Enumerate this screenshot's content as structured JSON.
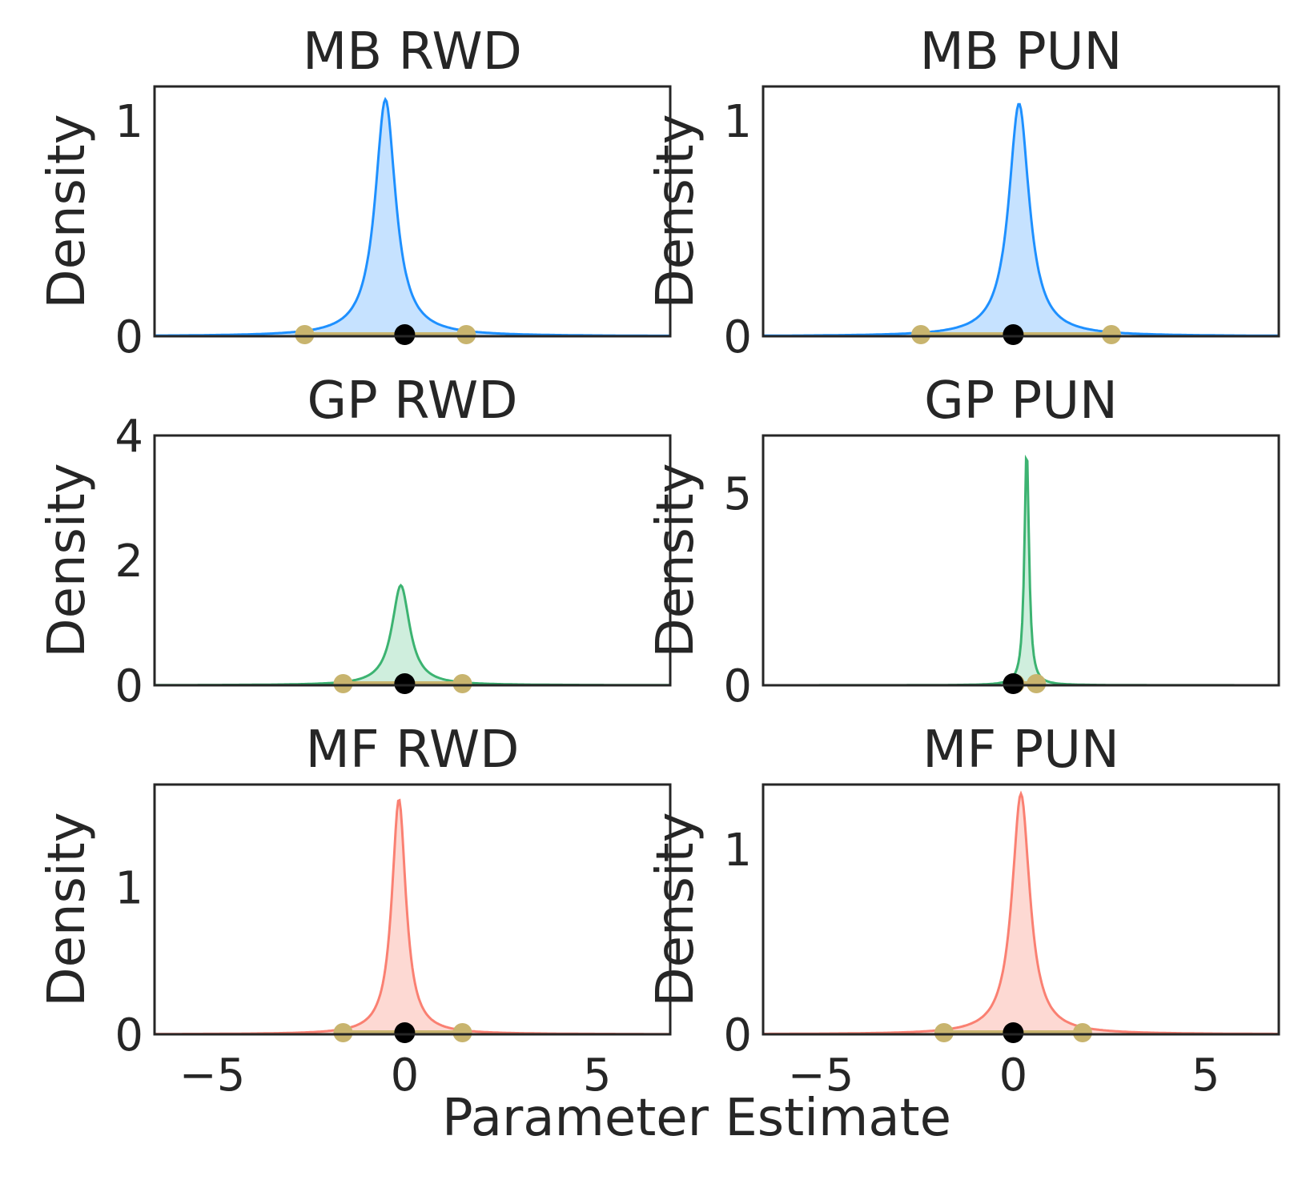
{
  "figure": {
    "xlabel": "Parameter Estimate"
  },
  "chart_data": [
    {
      "type": "area",
      "title": "MB RWD",
      "ylabel": "Density",
      "color": "#1e90ff",
      "fill": "#c6e2ff",
      "xlim": [
        -6.5,
        6.9
      ],
      "ylim": [
        0,
        1.16
      ],
      "xticks": [
        "−5",
        "0",
        "5"
      ],
      "yticks": [
        {
          "value": 0,
          "label": "0"
        },
        {
          "value": 1,
          "label": "1"
        }
      ],
      "peak_x": -0.5,
      "peak_y": 1.1,
      "spread": 0.32,
      "interval": [
        -2.6,
        1.6
      ],
      "marker_x": 0.0
    },
    {
      "type": "area",
      "title": "MB PUN",
      "ylabel": "Density",
      "color": "#1e90ff",
      "fill": "#c6e2ff",
      "xlim": [
        -6.5,
        6.9
      ],
      "ylim": [
        0,
        1.16
      ],
      "xticks": [
        "−5",
        "0",
        "5"
      ],
      "yticks": [
        {
          "value": 0,
          "label": "0"
        },
        {
          "value": 1,
          "label": "1"
        }
      ],
      "peak_x": 0.15,
      "peak_y": 1.08,
      "spread": 0.32,
      "interval": [
        -2.4,
        2.55
      ],
      "marker_x": 0.0
    },
    {
      "type": "area",
      "title": "GP RWD",
      "ylabel": "Density",
      "color": "#3cb371",
      "fill": "#cfeedd",
      "xlim": [
        -6.5,
        6.9
      ],
      "ylim": [
        0,
        4.0
      ],
      "xticks": [
        "−5",
        "0",
        "5"
      ],
      "yticks": [
        {
          "value": 0,
          "label": "0"
        },
        {
          "value": 2,
          "label": "2"
        },
        {
          "value": 4,
          "label": "4"
        }
      ],
      "peak_x": -0.1,
      "peak_y": 1.6,
      "spread": 0.28,
      "interval": [
        -1.6,
        1.5
      ],
      "marker_x": 0.0
    },
    {
      "type": "area",
      "title": "GP PUN",
      "ylabel": "Density",
      "color": "#3cb371",
      "fill": "#cfeedd",
      "xlim": [
        -6.5,
        6.9
      ],
      "ylim": [
        0,
        6.5
      ],
      "xticks": [
        "−5",
        "0",
        "5"
      ],
      "yticks": [
        {
          "value": 0,
          "label": "0"
        },
        {
          "value": 5,
          "label": "5"
        }
      ],
      "peak_x": 0.35,
      "peak_y": 6.2,
      "spread": 0.07,
      "interval": [
        0.05,
        0.6
      ],
      "marker_x": 0.0
    },
    {
      "type": "area",
      "title": "MF RWD",
      "ylabel": "Density",
      "color": "#fa8072",
      "fill": "#fdd9d3",
      "xlim": [
        -6.5,
        6.9
      ],
      "ylim": [
        0,
        1.7
      ],
      "xticks": [
        "−5",
        "0",
        "5"
      ],
      "yticks": [
        {
          "value": 0,
          "label": "0"
        },
        {
          "value": 1,
          "label": "1"
        }
      ],
      "peak_x": -0.15,
      "peak_y": 1.6,
      "spread": 0.22,
      "interval": [
        -1.6,
        1.5
      ],
      "marker_x": 0.0
    },
    {
      "type": "area",
      "title": "MF PUN",
      "ylabel": "Density",
      "color": "#fa8072",
      "fill": "#fdd9d3",
      "xlim": [
        -6.5,
        6.9
      ],
      "ylim": [
        0,
        1.35
      ],
      "xticks": [
        "−5",
        "0",
        "5"
      ],
      "yticks": [
        {
          "value": 0,
          "label": "0"
        },
        {
          "value": 1,
          "label": "1"
        }
      ],
      "peak_x": 0.2,
      "peak_y": 1.3,
      "spread": 0.28,
      "interval": [
        -1.8,
        1.8
      ],
      "marker_x": 0.0
    }
  ]
}
